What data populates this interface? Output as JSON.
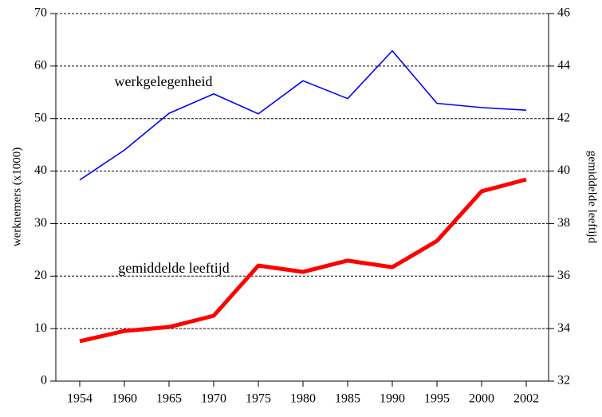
{
  "chart_data": {
    "type": "line",
    "categories": [
      "1954",
      "1960",
      "1965",
      "1970",
      "1975",
      "1980",
      "1985",
      "1990",
      "1995",
      "2000",
      "2002"
    ],
    "series": [
      {
        "name": "werkgelegenheid",
        "color": "#0000ff",
        "axis": "y",
        "values": [
          38.3,
          44.0,
          51.0,
          54.7,
          50.9,
          57.2,
          53.8,
          62.9,
          52.9,
          52.1,
          51.6
        ]
      },
      {
        "name": "gemiddelde leeftijd",
        "color": "#ff0000",
        "axis": "y2",
        "values": [
          33.52,
          33.91,
          34.06,
          34.49,
          36.4,
          36.16,
          36.59,
          36.34,
          37.34,
          39.23,
          39.68
        ]
      }
    ],
    "ylabel": "werknemers (x1000)",
    "y2label": "gemiddelde leeftijd",
    "ylim": [
      0,
      70
    ],
    "yticks": [
      0,
      10,
      20,
      30,
      40,
      50,
      60,
      70
    ],
    "y2lim": [
      32,
      46
    ],
    "y2ticks": [
      32,
      34,
      36,
      38,
      40,
      42,
      44,
      46
    ],
    "grid": true
  }
}
